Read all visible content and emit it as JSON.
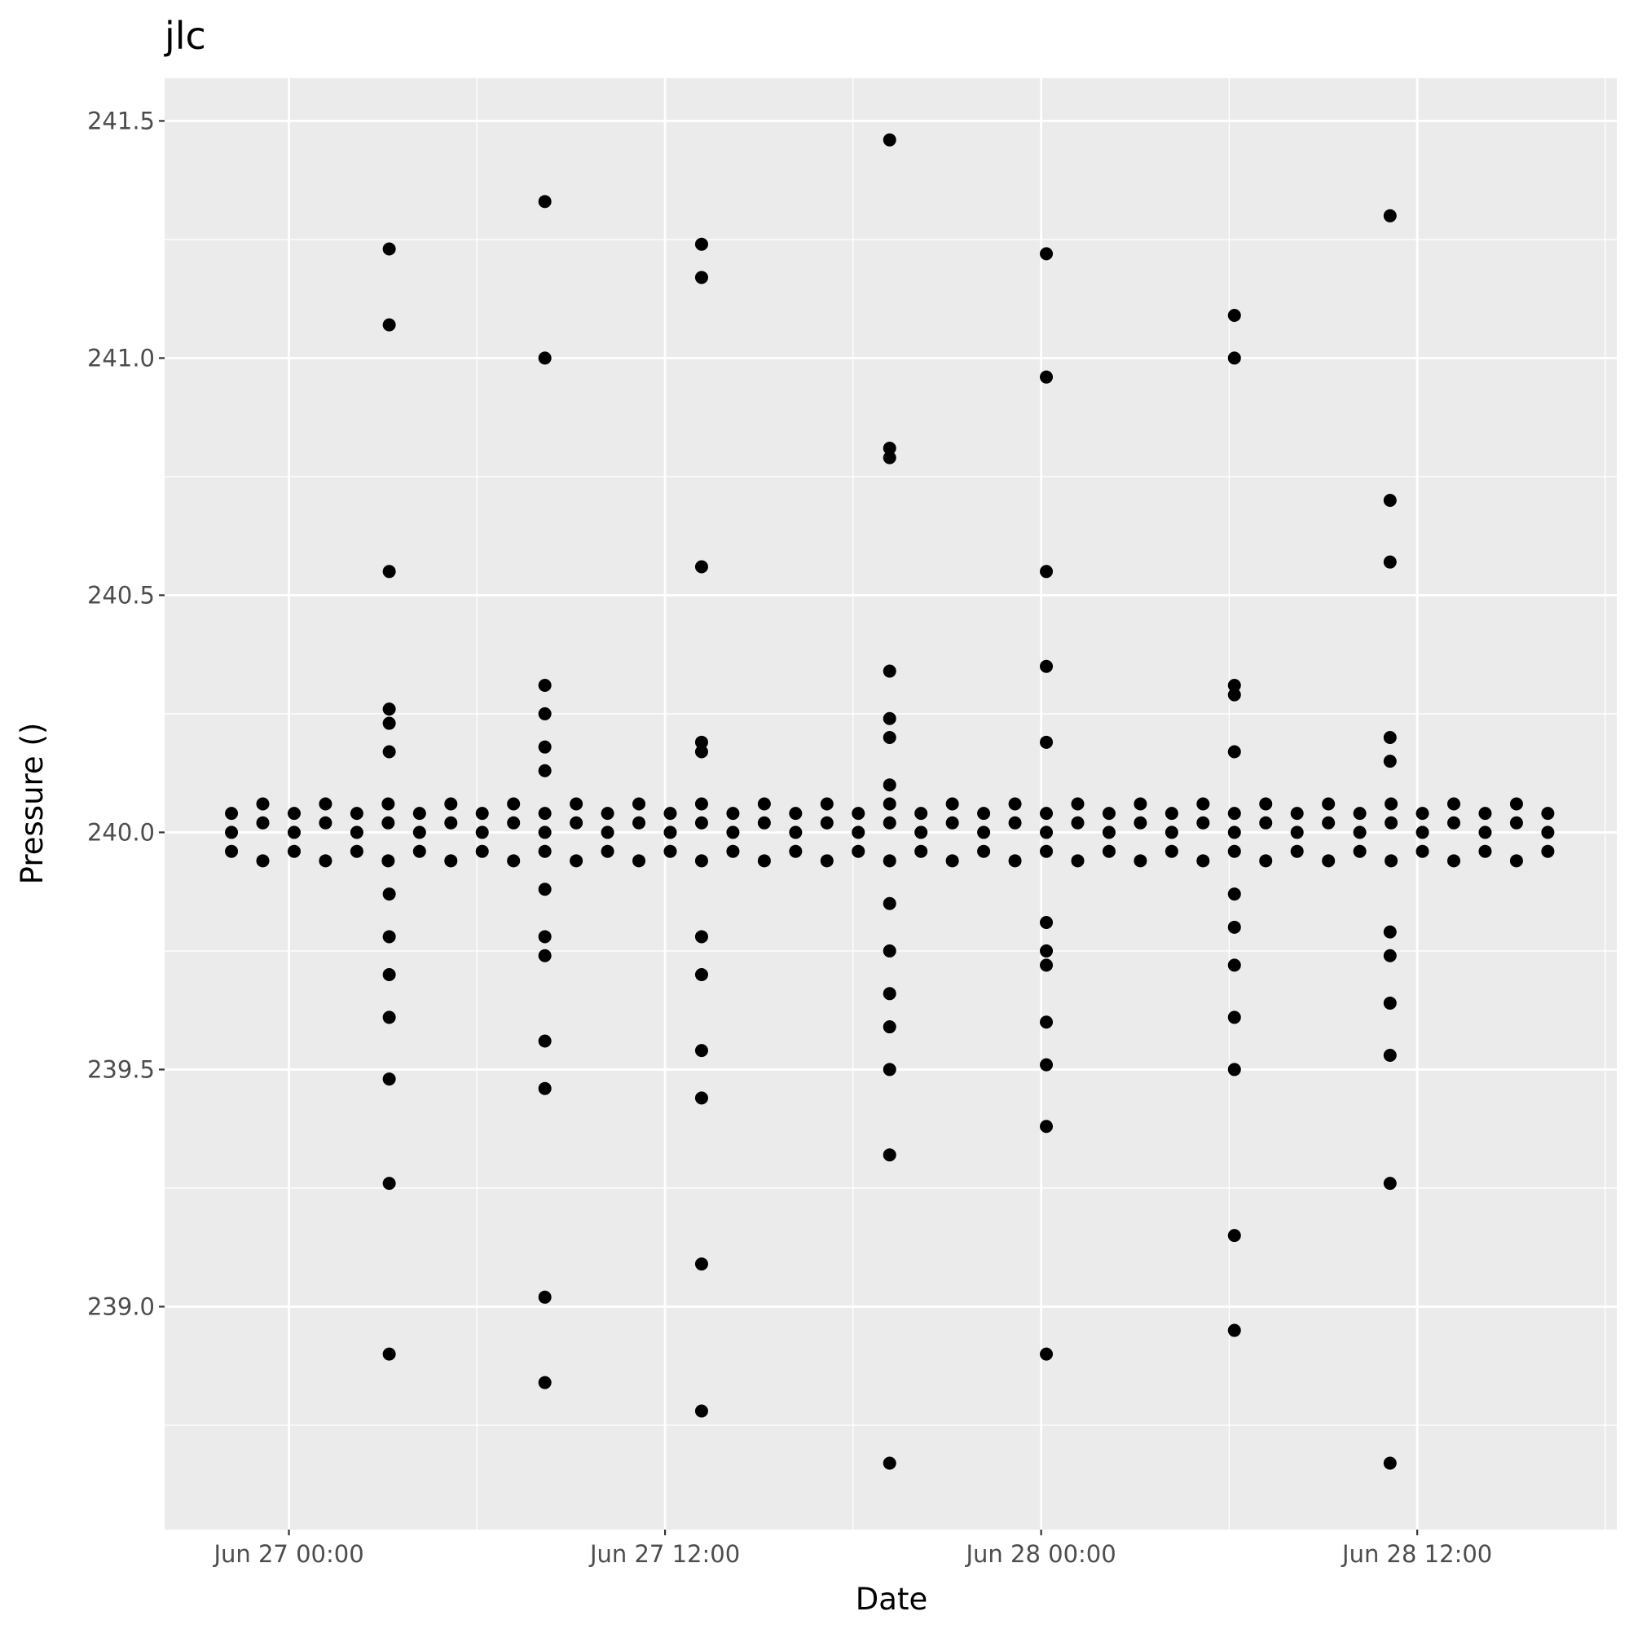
{
  "chart_data": {
    "type": "scatter",
    "title": "jlc",
    "x_label": "Date",
    "y_label": "Pressure ()",
    "color": "#000000",
    "grid": true,
    "xlim": [
      "Jun 26 20:02",
      "Jun 28 18:22"
    ],
    "xticks": [
      "Jun 27 00:00",
      "Jun 27 12:00",
      "Jun 28 00:00",
      "Jun 28 12:00"
    ],
    "ylim": [
      238.53,
      241.59
    ],
    "yticks": [
      {
        "value": 239,
        "label": "239.0"
      },
      239.5,
      {
        "value": 240,
        "label": "240.0"
      },
      240.5,
      {
        "value": 241,
        "label": "241.0"
      },
      241.5
    ],
    "x": [
      "Jun 27 03:12",
      "Jun 27 03:12",
      "Jun 27 03:12",
      "Jun 27 03:12",
      "Jun 27 03:12",
      "Jun 27 03:12",
      "Jun 27 03:12",
      "Jun 27 03:12",
      "Jun 27 03:12",
      "Jun 27 03:12",
      "Jun 27 03:12",
      "Jun 27 03:12",
      "Jun 27 03:12",
      "Jun 27 08:10",
      "Jun 27 08:10",
      "Jun 27 08:10",
      "Jun 27 08:10",
      "Jun 27 08:10",
      "Jun 27 08:10",
      "Jun 27 08:10",
      "Jun 27 08:10",
      "Jun 27 08:10",
      "Jun 27 08:10",
      "Jun 27 08:10",
      "Jun 27 08:10",
      "Jun 27 08:10",
      "Jun 27 13:10",
      "Jun 27 13:10",
      "Jun 27 13:10",
      "Jun 27 13:10",
      "Jun 27 13:10",
      "Jun 27 13:10",
      "Jun 27 13:10",
      "Jun 27 13:10",
      "Jun 27 13:10",
      "Jun 27 13:10",
      "Jun 27 13:10",
      "Jun 27 19:10",
      "Jun 27 19:10",
      "Jun 27 19:10",
      "Jun 27 19:10",
      "Jun 27 19:10",
      "Jun 27 19:10",
      "Jun 27 19:10",
      "Jun 27 19:10",
      "Jun 27 19:10",
      "Jun 27 19:10",
      "Jun 27 19:10",
      "Jun 27 19:10",
      "Jun 27 19:10",
      "Jun 27 19:10",
      "Jun 28 00:10",
      "Jun 28 00:10",
      "Jun 28 00:10",
      "Jun 28 00:10",
      "Jun 28 00:10",
      "Jun 28 00:10",
      "Jun 28 00:10",
      "Jun 28 00:10",
      "Jun 28 00:10",
      "Jun 28 00:10",
      "Jun 28 00:10",
      "Jun 28 00:10",
      "Jun 28 06:10",
      "Jun 28 06:10",
      "Jun 28 06:10",
      "Jun 28 06:10",
      "Jun 28 06:10",
      "Jun 28 06:10",
      "Jun 28 06:10",
      "Jun 28 06:10",
      "Jun 28 06:10",
      "Jun 28 06:10",
      "Jun 28 06:10",
      "Jun 28 06:10",
      "Jun 28 11:08",
      "Jun 28 11:08",
      "Jun 28 11:08",
      "Jun 28 11:08",
      "Jun 28 11:08",
      "Jun 28 11:08",
      "Jun 28 11:08",
      "Jun 28 11:08",
      "Jun 28 11:08",
      "Jun 28 11:08",
      "Jun 28 11:08",
      "Jun 26 22:10",
      "Jun 26 22:10",
      "Jun 26 22:10",
      "Jun 26 23:10",
      "Jun 26 23:10",
      "Jun 26 23:10",
      "Jun 27 00:10",
      "Jun 27 00:10",
      "Jun 27 00:10",
      "Jun 27 01:10",
      "Jun 27 01:10",
      "Jun 27 01:10",
      "Jun 27 02:10",
      "Jun 27 02:10",
      "Jun 27 02:10",
      "Jun 27 03:10",
      "Jun 27 03:10",
      "Jun 27 03:10",
      "Jun 27 04:10",
      "Jun 27 04:10",
      "Jun 27 04:10",
      "Jun 27 05:10",
      "Jun 27 05:10",
      "Jun 27 05:10",
      "Jun 27 06:10",
      "Jun 27 06:10",
      "Jun 27 06:10",
      "Jun 27 07:10",
      "Jun 27 07:10",
      "Jun 27 07:10",
      "Jun 27 08:10",
      "Jun 27 08:10",
      "Jun 27 08:10",
      "Jun 27 09:10",
      "Jun 27 09:10",
      "Jun 27 09:10",
      "Jun 27 10:10",
      "Jun 27 10:10",
      "Jun 27 10:10",
      "Jun 27 11:10",
      "Jun 27 11:10",
      "Jun 27 11:10",
      "Jun 27 12:10",
      "Jun 27 12:10",
      "Jun 27 12:10",
      "Jun 27 13:10",
      "Jun 27 13:10",
      "Jun 27 13:10",
      "Jun 27 14:10",
      "Jun 27 14:10",
      "Jun 27 14:10",
      "Jun 27 15:10",
      "Jun 27 15:10",
      "Jun 27 15:10",
      "Jun 27 16:10",
      "Jun 27 16:10",
      "Jun 27 16:10",
      "Jun 27 17:10",
      "Jun 27 17:10",
      "Jun 27 17:10",
      "Jun 27 18:10",
      "Jun 27 18:10",
      "Jun 27 18:10",
      "Jun 27 19:10",
      "Jun 27 19:10",
      "Jun 27 19:10",
      "Jun 27 20:10",
      "Jun 27 20:10",
      "Jun 27 20:10",
      "Jun 27 21:10",
      "Jun 27 21:10",
      "Jun 27 21:10",
      "Jun 27 22:10",
      "Jun 27 22:10",
      "Jun 27 22:10",
      "Jun 27 23:10",
      "Jun 27 23:10",
      "Jun 27 23:10",
      "Jun 28 00:10",
      "Jun 28 00:10",
      "Jun 28 00:10",
      "Jun 28 01:10",
      "Jun 28 01:10",
      "Jun 28 01:10",
      "Jun 28 02:10",
      "Jun 28 02:10",
      "Jun 28 02:10",
      "Jun 28 03:10",
      "Jun 28 03:10",
      "Jun 28 03:10",
      "Jun 28 04:10",
      "Jun 28 04:10",
      "Jun 28 04:10",
      "Jun 28 05:10",
      "Jun 28 05:10",
      "Jun 28 05:10",
      "Jun 28 06:10",
      "Jun 28 06:10",
      "Jun 28 06:10",
      "Jun 28 07:10",
      "Jun 28 07:10",
      "Jun 28 07:10",
      "Jun 28 08:10",
      "Jun 28 08:10",
      "Jun 28 08:10",
      "Jun 28 09:10",
      "Jun 28 09:10",
      "Jun 28 09:10",
      "Jun 28 10:10",
      "Jun 28 10:10",
      "Jun 28 10:10",
      "Jun 28 11:10",
      "Jun 28 11:10",
      "Jun 28 11:10",
      "Jun 28 12:10",
      "Jun 28 12:10",
      "Jun 28 12:10",
      "Jun 28 13:10",
      "Jun 28 13:10",
      "Jun 28 13:10",
      "Jun 28 14:10",
      "Jun 28 14:10",
      "Jun 28 14:10",
      "Jun 28 15:10",
      "Jun 28 15:10",
      "Jun 28 15:10",
      "Jun 28 16:10",
      "Jun 28 16:10",
      "Jun 28 16:10"
    ],
    "values": [
      241.23,
      241.07,
      240.55,
      240.26,
      240.23,
      240.17,
      239.87,
      239.78,
      239.7,
      239.61,
      239.48,
      239.26,
      238.9,
      241.33,
      241.0,
      240.31,
      240.25,
      240.18,
      240.13,
      239.88,
      239.78,
      239.74,
      239.56,
      239.46,
      239.02,
      238.84,
      241.24,
      241.17,
      240.56,
      240.19,
      240.17,
      239.78,
      239.7,
      239.54,
      239.44,
      239.09,
      238.78,
      241.46,
      240.81,
      240.79,
      240.34,
      240.24,
      240.2,
      240.1,
      239.85,
      239.75,
      239.66,
      239.59,
      239.5,
      239.32,
      238.67,
      241.22,
      240.96,
      240.55,
      240.35,
      240.19,
      239.81,
      239.75,
      239.72,
      239.6,
      239.51,
      239.38,
      238.9,
      241.09,
      241.0,
      240.31,
      240.29,
      240.17,
      239.87,
      239.8,
      239.72,
      239.61,
      239.5,
      239.15,
      238.95,
      241.3,
      240.7,
      240.57,
      240.2,
      240.15,
      239.79,
      239.74,
      239.64,
      239.53,
      239.26,
      238.67,
      239.96,
      240.0,
      240.04,
      239.94,
      240.02,
      240.06,
      239.96,
      240.0,
      240.04,
      239.94,
      240.02,
      240.06,
      239.96,
      240.0,
      240.04,
      239.94,
      240.02,
      240.06,
      239.96,
      240.0,
      240.04,
      239.94,
      240.02,
      240.06,
      239.96,
      240.0,
      240.04,
      239.94,
      240.02,
      240.06,
      239.96,
      240.0,
      240.04,
      239.94,
      240.02,
      240.06,
      239.96,
      240.0,
      240.04,
      239.94,
      240.02,
      240.06,
      239.96,
      240.0,
      240.04,
      239.94,
      240.02,
      240.06,
      239.96,
      240.0,
      240.04,
      239.94,
      240.02,
      240.06,
      239.96,
      240.0,
      240.04,
      239.94,
      240.02,
      240.06,
      239.96,
      240.0,
      240.04,
      239.94,
      240.02,
      240.06,
      239.96,
      240.0,
      240.04,
      239.94,
      240.02,
      240.06,
      239.96,
      240.0,
      240.04,
      239.94,
      240.02,
      240.06,
      239.96,
      240.0,
      240.04,
      239.94,
      240.02,
      240.06,
      239.96,
      240.0,
      240.04,
      239.94,
      240.02,
      240.06,
      239.96,
      240.0,
      240.04,
      239.94,
      240.02,
      240.06,
      239.96,
      240.0,
      240.04,
      239.94,
      240.02,
      240.06,
      239.96,
      240.0,
      240.04,
      239.94,
      240.02,
      240.06,
      239.96,
      240.0,
      240.04,
      239.94,
      240.02,
      240.06,
      239.96,
      240.0,
      240.04,
      239.94,
      240.02,
      240.06,
      239.96,
      240.0,
      240.04,
      239.94,
      240.02,
      240.06,
      239.96,
      240.0,
      240.04
    ]
  }
}
